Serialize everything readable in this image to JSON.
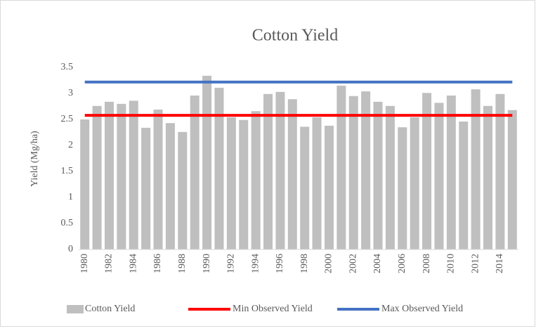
{
  "chart_data": {
    "type": "bar",
    "title": "Cotton Yield",
    "y_label": "Yield (Mg/ha)",
    "categories": [
      "1980",
      null,
      "1982",
      null,
      "1984",
      null,
      "1986",
      null,
      "1988",
      null,
      "1990",
      null,
      "1992",
      null,
      "1994",
      null,
      "1996",
      null,
      "1998",
      null,
      "2000",
      null,
      "2002",
      null,
      "2004",
      null,
      "2006",
      null,
      "2008",
      null,
      "2010",
      null,
      "2012",
      null,
      "2014",
      null
    ],
    "series": [
      {
        "name": "Cotton Yield",
        "type": "bar",
        "color": "#bfbfbf",
        "values": [
          2.5,
          2.76,
          2.84,
          2.8,
          2.86,
          2.34,
          2.69,
          2.43,
          2.26,
          2.96,
          3.34,
          3.11,
          2.54,
          2.49,
          2.66,
          2.99,
          3.03,
          2.89,
          2.36,
          2.54,
          2.38,
          3.15,
          2.95,
          3.04,
          2.84,
          2.76,
          2.35,
          2.54,
          3.01,
          2.82,
          2.96,
          2.46,
          3.08,
          2.76,
          2.99,
          2.68
        ]
      },
      {
        "name": "Min Observed Yield",
        "type": "line",
        "color": "#ff0000",
        "values": [
          2.58,
          2.58,
          2.58,
          2.58,
          2.58,
          2.58,
          2.58,
          2.58,
          2.58,
          2.58,
          2.58,
          2.58,
          2.58,
          2.58,
          2.58,
          2.58,
          2.58,
          2.58,
          2.58,
          2.58,
          2.58,
          2.58,
          2.58,
          2.58,
          2.58,
          2.58,
          2.58,
          2.58,
          2.58,
          2.58,
          2.58,
          2.58,
          2.58,
          2.58,
          2.58,
          2.58
        ]
      },
      {
        "name": "Max Observed Yield",
        "type": "line",
        "color": "#4472c4",
        "values": [
          3.22,
          3.22,
          3.22,
          3.22,
          3.22,
          3.22,
          3.22,
          3.22,
          3.22,
          3.22,
          3.22,
          3.22,
          3.22,
          3.22,
          3.22,
          3.22,
          3.22,
          3.22,
          3.22,
          3.22,
          3.22,
          3.22,
          3.22,
          3.22,
          3.22,
          3.22,
          3.22,
          3.22,
          3.22,
          3.22,
          3.22,
          3.22,
          3.22,
          3.22,
          3.22,
          3.22
        ]
      }
    ],
    "ylim": [
      0,
      3.5
    ],
    "yticks": [
      0,
      0.5,
      1,
      1.5,
      2,
      2.5,
      3,
      3.5
    ],
    "grid": false,
    "legend": "bottom"
  }
}
